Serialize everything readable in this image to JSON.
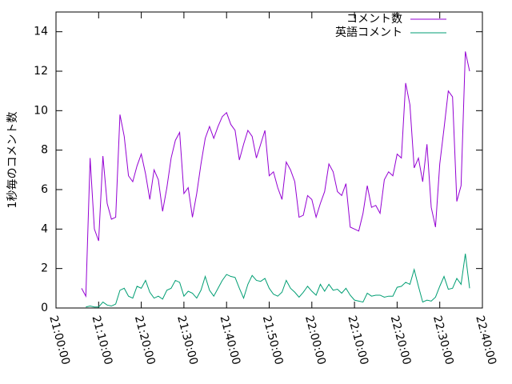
{
  "chart_data": {
    "type": "line",
    "ylabel": "1秒毎のコメント数",
    "x": [
      "21:06:00",
      "21:07:00",
      "21:08:00",
      "21:09:00",
      "21:10:00",
      "21:11:00",
      "21:12:00",
      "21:13:00",
      "21:14:00",
      "21:15:00",
      "21:16:00",
      "21:17:00",
      "21:18:00",
      "21:19:00",
      "21:20:00",
      "21:21:00",
      "21:22:00",
      "21:23:00",
      "21:24:00",
      "21:25:00",
      "21:26:00",
      "21:27:00",
      "21:28:00",
      "21:29:00",
      "21:30:00",
      "21:31:00",
      "21:32:00",
      "21:33:00",
      "21:34:00",
      "21:35:00",
      "21:36:00",
      "21:37:00",
      "21:38:00",
      "21:39:00",
      "21:40:00",
      "21:41:00",
      "21:42:00",
      "21:43:00",
      "21:44:00",
      "21:45:00",
      "21:46:00",
      "21:47:00",
      "21:48:00",
      "21:49:00",
      "21:50:00",
      "21:51:00",
      "21:52:00",
      "21:53:00",
      "21:54:00",
      "21:55:00",
      "21:56:00",
      "21:57:00",
      "21:58:00",
      "21:59:00",
      "22:00:00",
      "22:01:00",
      "22:02:00",
      "22:03:00",
      "22:04:00",
      "22:05:00",
      "22:06:00",
      "22:07:00",
      "22:08:00",
      "22:09:00",
      "22:10:00",
      "22:11:00",
      "22:12:00",
      "22:13:00",
      "22:14:00",
      "22:15:00",
      "22:16:00",
      "22:17:00",
      "22:18:00",
      "22:19:00",
      "22:20:00",
      "22:21:00",
      "22:22:00",
      "22:23:00",
      "22:24:00",
      "22:25:00",
      "22:26:00",
      "22:27:00",
      "22:28:00",
      "22:29:00",
      "22:30:00",
      "22:31:00",
      "22:32:00",
      "22:33:00",
      "22:34:00",
      "22:35:00",
      "22:36:00",
      "22:37:00"
    ],
    "series": [
      {
        "name": "コメント数",
        "color": "#9400d3",
        "values": [
          1.0,
          0.6,
          7.6,
          4.0,
          3.4,
          7.7,
          5.3,
          4.5,
          4.6,
          9.8,
          8.7,
          6.7,
          6.4,
          7.2,
          7.8,
          6.8,
          5.5,
          7.0,
          6.5,
          4.9,
          6.1,
          7.6,
          8.5,
          8.9,
          5.8,
          6.1,
          4.6,
          5.8,
          7.3,
          8.6,
          9.2,
          8.6,
          9.2,
          9.7,
          9.9,
          9.3,
          9.0,
          7.5,
          8.3,
          9.0,
          8.7,
          7.6,
          8.3,
          9.0,
          6.7,
          6.9,
          6.1,
          5.5,
          7.4,
          7.0,
          6.4,
          4.6,
          4.7,
          5.7,
          5.5,
          4.6,
          5.3,
          5.9,
          7.3,
          6.9,
          5.9,
          5.7,
          6.3,
          4.1,
          4.0,
          3.9,
          4.8,
          6.2,
          5.1,
          5.2,
          4.8,
          6.5,
          6.9,
          6.7,
          7.8,
          7.6,
          11.4,
          10.3,
          7.1,
          7.6,
          6.4,
          8.3,
          5.1,
          4.1,
          7.3,
          9.1,
          11.0,
          10.7,
          5.4,
          6.2,
          13.0,
          12.0
        ]
      },
      {
        "name": "英語コメント",
        "color": "#009e73",
        "values": [
          null,
          0.05,
          0.1,
          0.05,
          0.05,
          0.3,
          0.15,
          0.1,
          0.2,
          0.9,
          1.0,
          0.6,
          0.5,
          1.1,
          1.0,
          1.4,
          0.8,
          0.5,
          0.6,
          0.45,
          0.9,
          1.0,
          1.4,
          1.3,
          0.6,
          0.85,
          0.75,
          0.5,
          0.9,
          1.6,
          0.9,
          0.6,
          1.0,
          1.4,
          1.7,
          1.6,
          1.55,
          1.0,
          0.5,
          1.2,
          1.65,
          1.4,
          1.35,
          1.5,
          1.0,
          0.7,
          0.6,
          0.8,
          1.4,
          1.0,
          0.8,
          0.55,
          0.8,
          1.1,
          0.85,
          0.65,
          1.2,
          0.85,
          1.2,
          0.9,
          0.95,
          0.75,
          1.0,
          0.65,
          0.4,
          0.35,
          0.3,
          0.75,
          0.6,
          0.65,
          0.65,
          0.55,
          0.6,
          0.6,
          1.05,
          1.1,
          1.3,
          1.2,
          1.95,
          1.1,
          0.3,
          0.4,
          0.35,
          0.55,
          1.1,
          1.6,
          0.95,
          1.0,
          1.5,
          1.2,
          2.75,
          1.0
        ]
      }
    ],
    "xlim": [
      "21:00:00",
      "22:40:00"
    ],
    "xticks": [
      "21:00:00",
      "21:10:00",
      "21:20:00",
      "21:30:00",
      "21:40:00",
      "21:50:00",
      "22:00:00",
      "22:10:00",
      "22:20:00",
      "22:30:00",
      "22:40:00"
    ],
    "ylim": [
      0,
      15
    ],
    "yticks": [
      0,
      2,
      4,
      6,
      8,
      10,
      12,
      14
    ],
    "legend": "top-right"
  }
}
